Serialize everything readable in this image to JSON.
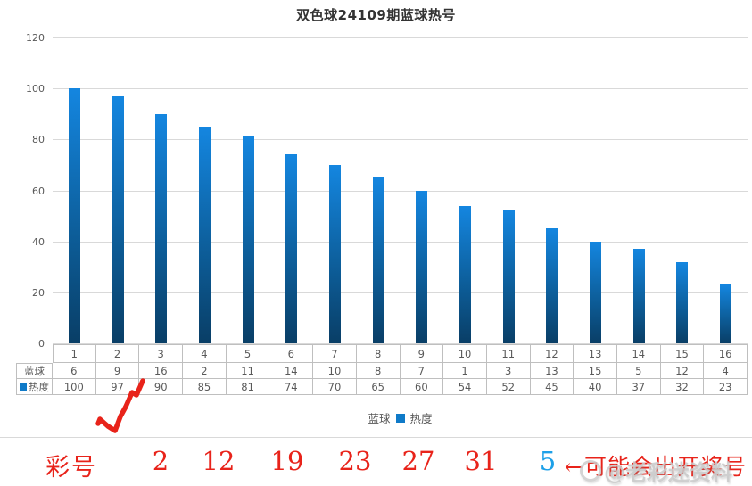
{
  "page": {
    "title": "双色球24109期蓝球热号"
  },
  "chart_data": {
    "type": "bar",
    "title": "双色球24109期蓝球热号",
    "categories": [
      "1",
      "2",
      "3",
      "4",
      "5",
      "6",
      "7",
      "8",
      "9",
      "10",
      "11",
      "12",
      "13",
      "14",
      "15",
      "16"
    ],
    "series": [
      {
        "name": "蓝球",
        "values": [
          6,
          9,
          16,
          2,
          11,
          14,
          10,
          8,
          7,
          1,
          3,
          13,
          15,
          5,
          12,
          4
        ],
        "plotted_as": "data-table-row"
      },
      {
        "name": "热度",
        "values": [
          100,
          97,
          90,
          85,
          81,
          74,
          70,
          65,
          60,
          54,
          52,
          45,
          40,
          37,
          32,
          23
        ],
        "plotted_as": "bars"
      }
    ],
    "ylim": [
      0,
      120
    ],
    "yticks": [
      0,
      20,
      40,
      60,
      80,
      100,
      120
    ],
    "grid": true,
    "legend_position": "bottom",
    "data_table_shown": true,
    "colors": {
      "bar_gradient_top": "#1486e0",
      "bar_gradient_bottom": "#093e66",
      "gridline": "#d9d9d9",
      "axis_text": "#595959",
      "table_border": "#bfbfbf",
      "legend_marker": "#0f7ac8"
    }
  },
  "annotation": {
    "label": "彩号",
    "red_numbers": [
      "2",
      "12",
      "19",
      "23",
      "27",
      "31"
    ],
    "blue_number": "5",
    "note": "←可能会出开奖号",
    "red_color": "#e8231a",
    "blue_color": "#1da0e8"
  },
  "watermark": {
    "text": "@老彩迷资料"
  }
}
